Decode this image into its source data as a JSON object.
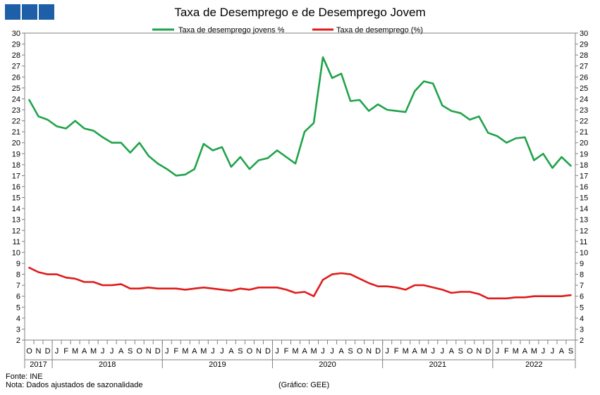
{
  "header": {
    "logo_blocks": 3,
    "logo_color": "#1f5fa8"
  },
  "footer": {
    "source": "Fonte: INE",
    "note": "Nota: Dados ajustados de sazonalidade",
    "credit": "(Gráfico: GEE)"
  },
  "chart_data": {
    "type": "line",
    "title": "Taxa de Desemprego e de Desemprego Jovem",
    "xlabel": "",
    "ylabel": "",
    "ylim": [
      2,
      30
    ],
    "yticks": [
      2,
      3,
      4,
      5,
      6,
      7,
      8,
      9,
      10,
      11,
      12,
      13,
      14,
      15,
      16,
      17,
      18,
      19,
      20,
      21,
      22,
      23,
      24,
      25,
      26,
      27,
      28,
      29,
      30
    ],
    "grid": false,
    "legend": "top-center",
    "x": [
      "O",
      "N",
      "D",
      "J",
      "F",
      "M",
      "A",
      "M",
      "J",
      "J",
      "A",
      "S",
      "O",
      "N",
      "D",
      "J",
      "F",
      "M",
      "A",
      "M",
      "J",
      "J",
      "A",
      "S",
      "O",
      "N",
      "D",
      "J",
      "F",
      "M",
      "A",
      "M",
      "J",
      "J",
      "A",
      "S",
      "O",
      "N",
      "D",
      "J",
      "F",
      "M",
      "A",
      "M",
      "J",
      "J",
      "A",
      "S",
      "O",
      "N",
      "D",
      "J",
      "F",
      "M",
      "A",
      "M",
      "J",
      "J",
      "A",
      "S"
    ],
    "years": [
      {
        "label": "2017",
        "start": 0,
        "end": 2
      },
      {
        "label": "2018",
        "start": 3,
        "end": 14
      },
      {
        "label": "2019",
        "start": 15,
        "end": 26
      },
      {
        "label": "2020",
        "start": 27,
        "end": 38
      },
      {
        "label": "2021",
        "start": 39,
        "end": 50
      },
      {
        "label": "2022",
        "start": 51,
        "end": 59
      }
    ],
    "series": [
      {
        "name": "Taxa de desemprego jovens %",
        "color": "#1fa34a",
        "values": [
          23.9,
          22.4,
          22.1,
          21.5,
          21.3,
          22.0,
          21.3,
          21.1,
          20.5,
          20.0,
          20.0,
          19.1,
          20.0,
          18.8,
          18.1,
          17.6,
          17.0,
          17.1,
          17.6,
          19.9,
          19.3,
          19.6,
          17.8,
          18.7,
          17.6,
          18.4,
          18.6,
          19.3,
          18.7,
          18.1,
          21.0,
          21.8,
          27.8,
          25.9,
          26.3,
          23.8,
          23.9,
          22.9,
          23.5,
          23.0,
          22.9,
          22.8,
          24.7,
          25.6,
          25.4,
          23.4,
          22.9,
          22.7,
          22.1,
          22.4,
          20.9,
          20.6,
          20.0,
          20.4,
          20.5,
          18.4,
          19.0,
          17.7,
          18.7,
          17.9
        ]
      },
      {
        "name": "Taxa de desemprego (%)",
        "color": "#e01b1b",
        "values": [
          8.6,
          8.2,
          8.0,
          8.0,
          7.7,
          7.6,
          7.3,
          7.3,
          7.0,
          7.0,
          7.1,
          6.7,
          6.7,
          6.8,
          6.7,
          6.7,
          6.7,
          6.6,
          6.7,
          6.8,
          6.7,
          6.6,
          6.5,
          6.7,
          6.6,
          6.8,
          6.8,
          6.8,
          6.6,
          6.3,
          6.4,
          6.0,
          7.5,
          8.0,
          8.1,
          8.0,
          7.6,
          7.2,
          6.9,
          6.9,
          6.8,
          6.6,
          7.0,
          7.0,
          6.8,
          6.6,
          6.3,
          6.4,
          6.4,
          6.2,
          5.8,
          5.8,
          5.8,
          5.9,
          5.9,
          6.0,
          6.0,
          6.0,
          6.0,
          6.1
        ]
      }
    ]
  }
}
